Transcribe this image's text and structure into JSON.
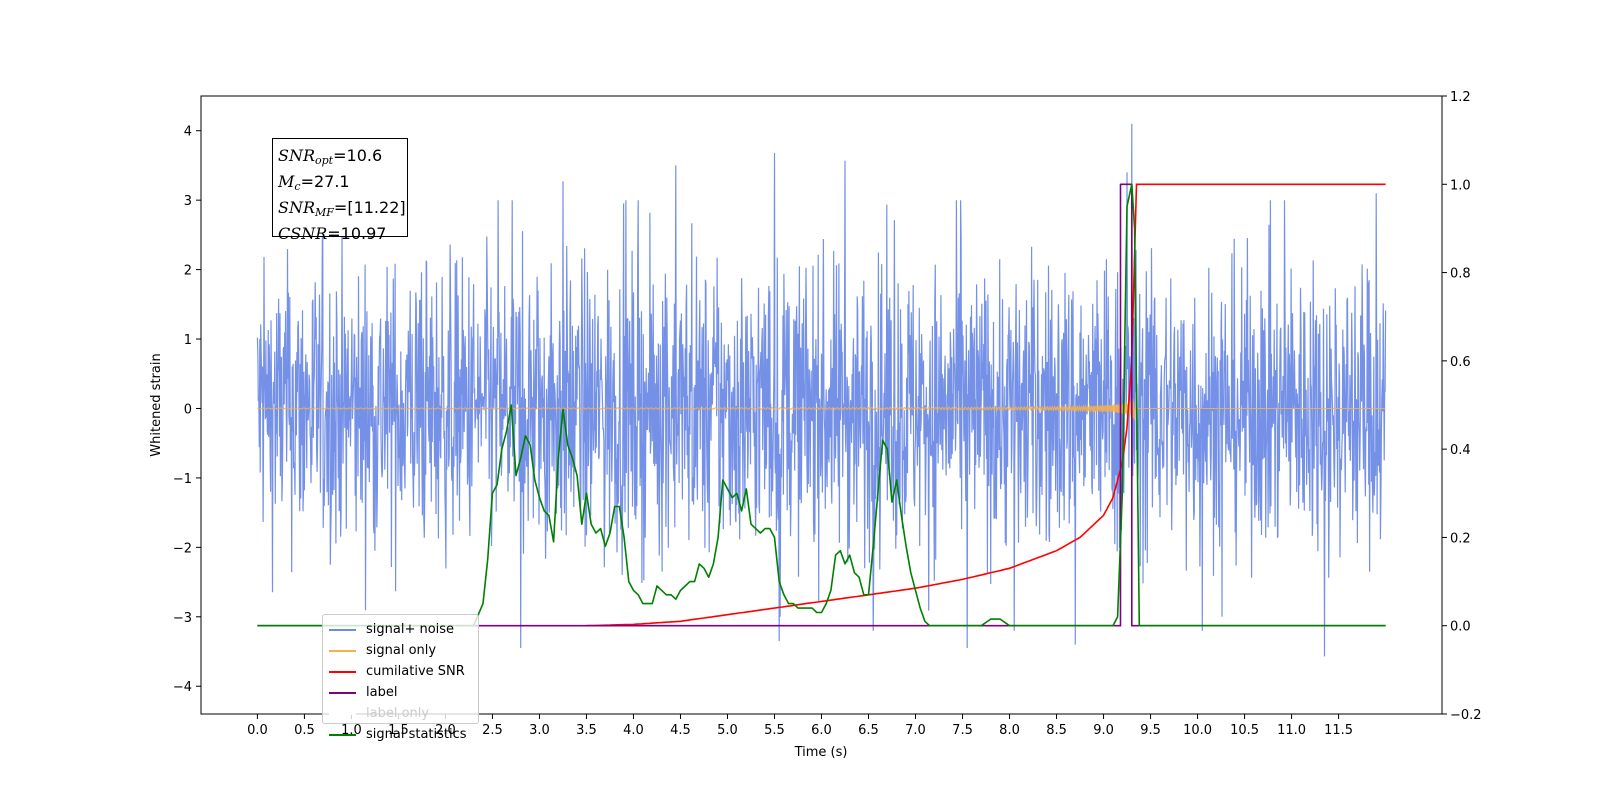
{
  "chart_data": {
    "type": "line",
    "xlabel": "Time (s)",
    "ylabel_left": "Whitened strain",
    "ylabel_right": "",
    "xlim": [
      -0.6,
      12.6
    ],
    "ylim_left": [
      -4.4,
      4.5
    ],
    "ylim_right": [
      -0.2,
      1.2
    ],
    "x_ticks": [
      "0.0",
      "0.5",
      "1.0",
      "1.5",
      "2.0",
      "2.5",
      "3.0",
      "3.5",
      "4.0",
      "4.5",
      "5.0",
      "5.5",
      "6.0",
      "6.5",
      "7.0",
      "7.5",
      "8.0",
      "8.5",
      "9.0",
      "9.5",
      "10.0",
      "10.5",
      "11.0",
      "11.5"
    ],
    "y_ticks_left": [
      "4",
      "3",
      "2",
      "1",
      "0",
      "−1",
      "−2",
      "−3",
      "−4"
    ],
    "y_ticks_right": [
      "1.2",
      "1.0",
      "0.8",
      "0.6",
      "0.4",
      "0.2",
      "0.0",
      "−0.2"
    ],
    "grid": false,
    "legend_placement": "lower-left",
    "annotation": {
      "snr_opt": "=10.6",
      "mc": "=27.1",
      "snr_mf": "=[11.22]",
      "csnr": "=10.97"
    },
    "series": [
      {
        "name": "signal+ noise",
        "axis": "left",
        "color": "#6d8be6",
        "description_values": "noise band approx ±1.2 typical, spikes to ±3.7; peak 4.1 at t≈9.3",
        "envelope_x": [
          0.0,
          12.0
        ],
        "typical_amplitude": 1.2,
        "spikes": [
          {
            "x": 3.25,
            "y": 3.27
          },
          {
            "x": 4.45,
            "y": 3.5
          },
          {
            "x": 5.5,
            "y": 3.68
          },
          {
            "x": 6.25,
            "y": 3.57
          },
          {
            "x": 9.25,
            "y": 3.4
          },
          {
            "x": 9.3,
            "y": 4.1
          },
          {
            "x": 11.9,
            "y": 3.1
          },
          {
            "x": 2.8,
            "y": -3.45
          },
          {
            "x": 5.55,
            "y": -3.35
          },
          {
            "x": 6.55,
            "y": -3.2
          },
          {
            "x": 7.55,
            "y": -3.45
          },
          {
            "x": 8.05,
            "y": -3.2
          },
          {
            "x": 8.7,
            "y": -3.4
          },
          {
            "x": 10.05,
            "y": -3.2
          },
          {
            "x": 11.35,
            "y": -3.57
          }
        ]
      },
      {
        "name": "signal only",
        "axis": "left",
        "color": "#f5b04a",
        "description_values": "chirp growing to amplitude ~1.1 near merger at t≈9.3, zero after 9.35"
      },
      {
        "name": "cumilative SNR",
        "axis": "right",
        "color": "#ff0000",
        "x": [
          3.5,
          4.0,
          4.5,
          5.0,
          5.5,
          6.0,
          6.5,
          7.0,
          7.5,
          8.0,
          8.5,
          8.75,
          9.0,
          9.1,
          9.2,
          9.25,
          9.3,
          9.35,
          12.0
        ],
        "y": [
          0.0,
          0.003,
          0.01,
          0.025,
          0.04,
          0.055,
          0.07,
          0.085,
          0.105,
          0.13,
          0.17,
          0.2,
          0.25,
          0.29,
          0.37,
          0.45,
          0.6,
          1.0,
          1.0
        ]
      },
      {
        "name": "label",
        "axis": "right",
        "color": "#800080",
        "x": [
          0.0,
          9.18,
          9.18,
          9.3,
          9.3,
          12.0
        ],
        "y": [
          0.0,
          0.0,
          1.0,
          1.0,
          0.0,
          0.0
        ]
      },
      {
        "name": "label only",
        "axis": "right",
        "color": "#ffffff",
        "x": [],
        "y": []
      },
      {
        "name": "signal statistics",
        "axis": "right",
        "color": "#008000",
        "x": [
          0.0,
          2.0,
          2.2,
          2.3,
          2.4,
          2.45,
          2.5,
          2.55,
          2.6,
          2.65,
          2.7,
          2.75,
          2.8,
          2.85,
          2.9,
          2.95,
          3.0,
          3.05,
          3.1,
          3.15,
          3.2,
          3.25,
          3.3,
          3.35,
          3.4,
          3.45,
          3.5,
          3.55,
          3.6,
          3.65,
          3.7,
          3.75,
          3.8,
          3.85,
          3.9,
          3.95,
          4.0,
          4.05,
          4.1,
          4.15,
          4.2,
          4.25,
          4.3,
          4.35,
          4.4,
          4.45,
          4.5,
          4.55,
          4.6,
          4.65,
          4.7,
          4.75,
          4.8,
          4.85,
          4.9,
          4.95,
          5.0,
          5.05,
          5.1,
          5.15,
          5.2,
          5.25,
          5.3,
          5.35,
          5.4,
          5.45,
          5.5,
          5.55,
          5.6,
          5.65,
          5.7,
          5.75,
          5.8,
          5.85,
          5.9,
          5.95,
          6.0,
          6.05,
          6.1,
          6.15,
          6.2,
          6.25,
          6.3,
          6.35,
          6.4,
          6.45,
          6.5,
          6.55,
          6.6,
          6.65,
          6.7,
          6.75,
          6.8,
          6.85,
          6.9,
          6.95,
          7.0,
          7.05,
          7.1,
          7.15,
          7.3,
          7.6,
          7.7,
          7.8,
          7.9,
          8.0,
          8.3,
          8.5,
          8.7,
          9.0,
          9.1,
          9.15,
          9.2,
          9.25,
          9.3,
          9.33,
          9.38,
          12.0
        ],
        "y": [
          0.0,
          0.0,
          0.0,
          0.0,
          0.05,
          0.15,
          0.3,
          0.32,
          0.4,
          0.44,
          0.5,
          0.34,
          0.38,
          0.43,
          0.41,
          0.33,
          0.29,
          0.26,
          0.25,
          0.19,
          0.38,
          0.49,
          0.41,
          0.38,
          0.34,
          0.23,
          0.3,
          0.23,
          0.21,
          0.22,
          0.18,
          0.21,
          0.27,
          0.27,
          0.2,
          0.1,
          0.08,
          0.07,
          0.05,
          0.05,
          0.05,
          0.09,
          0.08,
          0.07,
          0.07,
          0.06,
          0.08,
          0.09,
          0.1,
          0.1,
          0.14,
          0.13,
          0.11,
          0.14,
          0.2,
          0.33,
          0.31,
          0.29,
          0.3,
          0.26,
          0.31,
          0.23,
          0.22,
          0.21,
          0.22,
          0.22,
          0.2,
          0.1,
          0.07,
          0.05,
          0.05,
          0.04,
          0.04,
          0.04,
          0.04,
          0.03,
          0.03,
          0.05,
          0.08,
          0.16,
          0.17,
          0.14,
          0.16,
          0.12,
          0.11,
          0.07,
          0.07,
          0.18,
          0.3,
          0.42,
          0.4,
          0.28,
          0.33,
          0.25,
          0.18,
          0.12,
          0.08,
          0.04,
          0.01,
          0.0,
          0.0,
          0.0,
          0.0,
          0.015,
          0.015,
          0.0,
          0.0,
          0.0,
          0.0,
          0.0,
          0.0,
          0.02,
          0.3,
          0.95,
          1.0,
          0.9,
          0.0,
          0.0
        ]
      }
    ]
  }
}
